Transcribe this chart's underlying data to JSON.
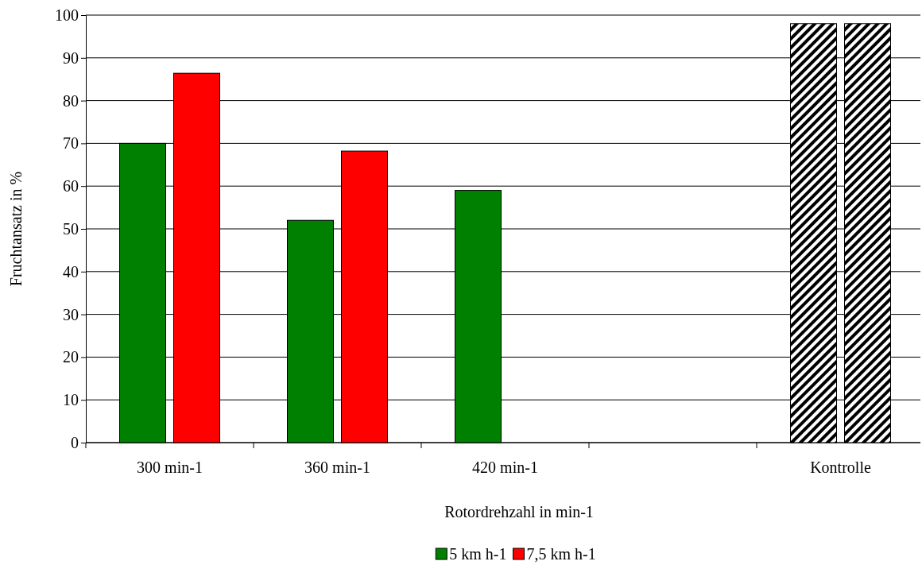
{
  "chart_data": {
    "type": "bar",
    "xlabel": "Rotordrehzahl in min-1",
    "ylabel": "Fruchtansatz in %",
    "categories": [
      "300 min-1",
      "360 min-1",
      "420 min-1",
      null,
      "Kontrolle"
    ],
    "series": [
      {
        "name": "5 km h-1",
        "color": "#008000",
        "colors": [
          "#008000",
          "#008000",
          "#008000",
          null,
          "#000000"
        ],
        "values": [
          70,
          52,
          59,
          null,
          98
        ]
      },
      {
        "name": "7,5 km h-1",
        "color": "#ff0000",
        "colors": [
          "#ff0000",
          "#ff0000",
          null,
          null,
          "#000000"
        ],
        "values": [
          86.4,
          68.2,
          null,
          null,
          98
        ]
      }
    ],
    "ylim": [
      0,
      100
    ],
    "yticks": [
      0,
      10,
      20,
      30,
      40,
      50,
      60,
      70,
      80,
      90,
      100
    ],
    "grid": "y",
    "legend": "bottom"
  }
}
